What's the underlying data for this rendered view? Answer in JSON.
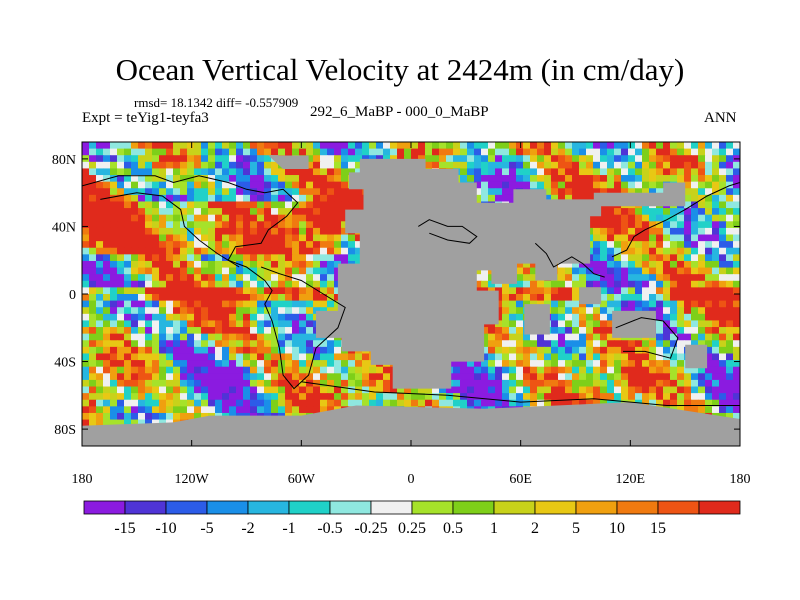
{
  "chart_data": {
    "type": "heatmap",
    "title": "Ocean Vertical Velocity at 2424m (in cm/day)",
    "stats": "rmsd= 18.1342 diff= -0.557909",
    "experiment": "Expt = teYig1-teyfa3",
    "center_label": "292_6_MaBP - 000_0_MaBP",
    "season": "ANN",
    "xlim": [
      -180,
      180
    ],
    "ylim": [
      -90,
      90
    ],
    "x_ticks": [
      {
        "value": -180,
        "label": "180"
      },
      {
        "value": -120,
        "label": "120W"
      },
      {
        "value": -60,
        "label": "60W"
      },
      {
        "value": 0,
        "label": "0"
      },
      {
        "value": 60,
        "label": "60E"
      },
      {
        "value": 120,
        "label": "120E"
      },
      {
        "value": 180,
        "label": "180"
      }
    ],
    "y_ticks": [
      {
        "value": 80,
        "label": "80N"
      },
      {
        "value": 40,
        "label": "40N"
      },
      {
        "value": 0,
        "label": "0"
      },
      {
        "value": -40,
        "label": "40S"
      },
      {
        "value": -80,
        "label": "80S"
      }
    ],
    "colorbar": {
      "colors": [
        "#8b1be0",
        "#4f34d6",
        "#2c5ce8",
        "#1a8fe8",
        "#27b6e0",
        "#20d1c8",
        "#8fe8e0",
        "#f0f0f0",
        "#a6e22a",
        "#7ecf19",
        "#c8d21a",
        "#e8c814",
        "#f0a00f",
        "#f07a10",
        "#ee5414",
        "#e02a1c"
      ],
      "labels": [
        "-15",
        "-10",
        "-5",
        "-2",
        "-1",
        "-0.5",
        "-0.25",
        "0.25",
        "0.5",
        "1",
        "2",
        "5",
        "10",
        "15"
      ]
    },
    "land_color": "#a0a0a0",
    "missing_value_note": "gray = land / no data"
  }
}
